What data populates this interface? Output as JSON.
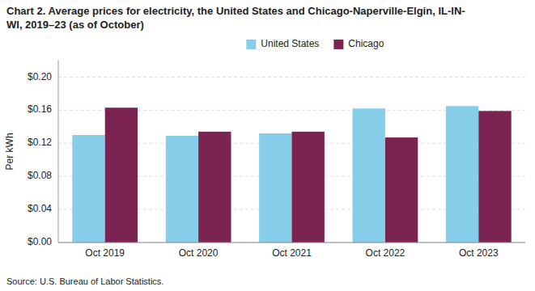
{
  "chart_data": {
    "type": "bar",
    "title": "Chart 2. Average prices for electricity, the United States and Chicago-Naperville-Elgin, IL-IN-\nWI, 2019–23 (as of October)",
    "source": "Source: U.S. Bureau of Labor Statistics.",
    "y_label": "Per kWh",
    "categories": [
      "Oct 2019",
      "Oct 2020",
      "Oct 2021",
      "Oct 2022",
      "Oct 2023"
    ],
    "series": [
      {
        "name": "United States",
        "color": "#87CEEB",
        "values": [
          0.13,
          0.129,
          0.132,
          0.162,
          0.165
        ]
      },
      {
        "name": "Chicago",
        "color": "#7B2451",
        "values": [
          0.163,
          0.134,
          0.134,
          0.127,
          0.159
        ]
      }
    ],
    "ylim": [
      0.0,
      0.22
    ],
    "yticks": [
      {
        "value": 0.0,
        "label": "$0.00"
      },
      {
        "value": 0.04,
        "label": "$0.04"
      },
      {
        "value": 0.08,
        "label": "$0.08"
      },
      {
        "value": 0.12,
        "label": "$0.12"
      },
      {
        "value": 0.16,
        "label": "$0.16"
      },
      {
        "value": 0.2,
        "label": "$0.20"
      }
    ],
    "grid": true,
    "legend": "top"
  }
}
